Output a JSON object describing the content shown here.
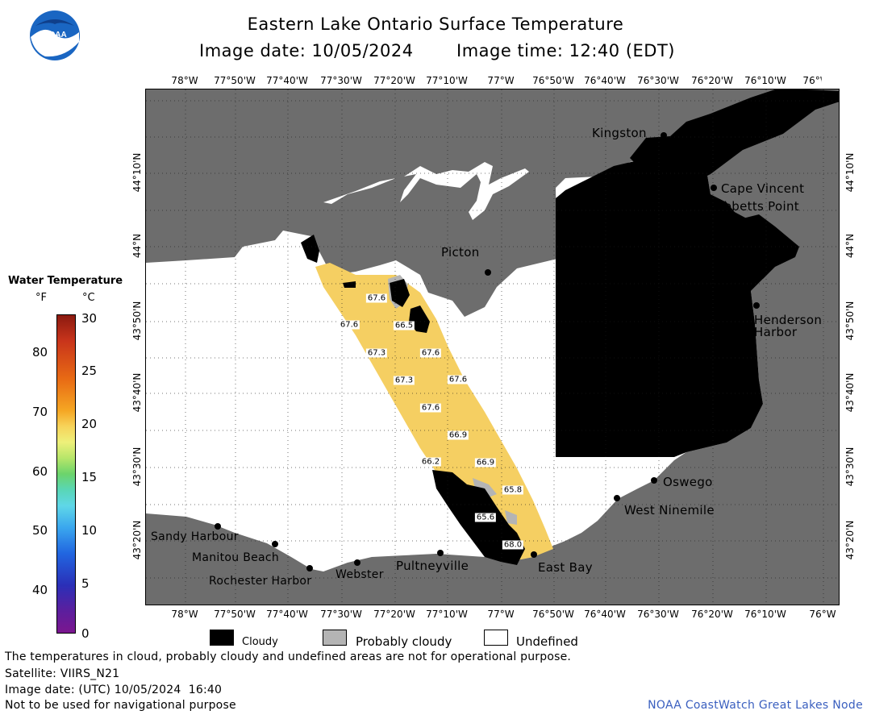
{
  "header": {
    "title": "Eastern Lake Ontario Surface Temperature",
    "subtitle_date": "Image date: 10/05/2024",
    "subtitle_time": "Image time: 12:40 (EDT)"
  },
  "logo": {
    "text": "NOAA"
  },
  "axes": {
    "lon_labels": [
      "78°W",
      "77°50'W",
      "77°40'W",
      "77°30'W",
      "77°20'W",
      "77°10'W",
      "77°W",
      "76°50'W",
      "76°40'W",
      "76°30'W",
      "76°20'W",
      "76°10'W",
      "76°W"
    ],
    "lat_labels": [
      "44°10'N",
      "44°N",
      "43°50'N",
      "43°40'N",
      "43°30'N",
      "43°20'N"
    ]
  },
  "legend": {
    "title": "Water Temperature",
    "unit_f": "°F",
    "unit_c": "°C",
    "f_ticks": [
      "80",
      "70",
      "60",
      "50",
      "40"
    ],
    "c_ticks": [
      "30",
      "25",
      "20",
      "15",
      "10",
      "5",
      "0"
    ],
    "cloudy": "Cloudy",
    "probably_cloudy": "Probably cloudy",
    "undefined": "Undefined"
  },
  "places": {
    "kingston": "Kingston",
    "cape_vincent": "Cape Vincent",
    "tibbetts_point": "Tibbetts Point",
    "picton": "Picton",
    "henderson_harbor_1": "Henderson",
    "henderson_harbor_2": "Harbor",
    "oswego": "Oswego",
    "west_ninemile": "West Ninemile",
    "sandy_harbour": "Sandy Harbour",
    "manitou_beach": "Manitou Beach",
    "rochester_harbor": "Rochester Harbor",
    "webster": "Webster",
    "pultneyville": "Pultneyville",
    "east_bay": "East Bay"
  },
  "temperatures": [
    "67.6",
    "67.6",
    "66.5",
    "67.3",
    "67.6",
    "67.3",
    "67.6",
    "67.6",
    "66.9",
    "66.2",
    "66.9",
    "65.8",
    "65.6",
    "68.0"
  ],
  "footer": {
    "disclaimer": "The temperatures in cloud, probably cloudy and undefined areas are not for operational purpose.",
    "satellite": "Satellite: VIIRS_N21",
    "utc_date": "Image date: (UTC) 10/05/2024  16:40",
    "nav_warning": "Not to be used for navigational purpose",
    "credit": "NOAA CoastWatch Great Lakes Node"
  },
  "colors": {
    "land": "#6d6d6d",
    "lake_undefined": "#ffffff",
    "cloud": "#000000",
    "probably_cloudy": "#b4b4b4",
    "swath": "#f5cf62",
    "credit": "#3a5fbf"
  }
}
